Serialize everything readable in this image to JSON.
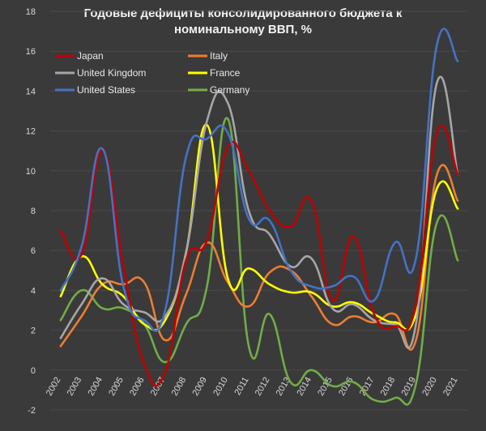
{
  "chart_data": {
    "type": "line",
    "title_line1": "Годовые дефициты консолидированного бюджета к",
    "title_line2": "номинальному ВВП, %",
    "x": [
      "2002",
      "2003",
      "2004",
      "2005",
      "2006",
      "2007",
      "2008",
      "2009",
      "2010",
      "2011",
      "2012",
      "2013",
      "2014",
      "2015",
      "2016",
      "2017",
      "2018",
      "2019",
      "2020",
      "2021"
    ],
    "ylim": [
      -2,
      18
    ],
    "yticks": [
      -2,
      0,
      2,
      4,
      6,
      8,
      10,
      12,
      14,
      16,
      18
    ],
    "grid": true,
    "legend_placement": "top",
    "series": [
      {
        "name": "Japan",
        "color": "#c00000",
        "values": [
          7.0,
          5.8,
          11.0,
          5.2,
          0.3,
          -0.1,
          5.5,
          6.5,
          11.2,
          10.0,
          8.0,
          7.2,
          8.5,
          3.5,
          6.7,
          2.8,
          2.2,
          3.3,
          11.9,
          9.8
        ]
      },
      {
        "name": "Italy",
        "color": "#ed7d31",
        "values": [
          1.2,
          2.7,
          4.3,
          4.3,
          4.4,
          1.5,
          3.8,
          6.4,
          4.4,
          3.2,
          4.9,
          5.0,
          3.7,
          2.3,
          2.7,
          2.4,
          2.8,
          1.5,
          9.8,
          8.5
        ]
      },
      {
        "name": "United Kingdom",
        "color": "#a6a6a6",
        "values": [
          1.6,
          3.3,
          4.6,
          3.3,
          2.9,
          2.7,
          5.9,
          12.5,
          13.4,
          8.0,
          6.8,
          5.2,
          5.6,
          3.1,
          3.3,
          2.5,
          2.3,
          2.3,
          14.4,
          9.8
        ]
      },
      {
        "name": "France",
        "color": "#ffff00",
        "values": [
          3.7,
          5.7,
          4.3,
          3.7,
          2.3,
          2.5,
          5.9,
          12.3,
          4.6,
          5.1,
          4.3,
          3.9,
          3.9,
          3.2,
          3.4,
          2.8,
          2.4,
          2.8,
          9.1,
          8.1
        ]
      },
      {
        "name": "United States",
        "color": "#4472c4",
        "values": [
          4.0,
          6.2,
          11.1,
          4.2,
          2.5,
          3.0,
          10.7,
          11.6,
          11.9,
          7.6,
          7.5,
          5.0,
          4.2,
          4.2,
          4.7,
          3.5,
          6.4,
          5.6,
          16.3,
          15.5
        ]
      },
      {
        "name": "Germany",
        "color": "#70ad47",
        "values": [
          2.5,
          4.0,
          3.1,
          3.1,
          2.3,
          0.4,
          2.3,
          4.2,
          12.6,
          1.2,
          2.8,
          -0.6,
          0.0,
          -0.8,
          -0.6,
          -1.5,
          -1.4,
          -0.7,
          7.4,
          5.5
        ]
      }
    ]
  }
}
